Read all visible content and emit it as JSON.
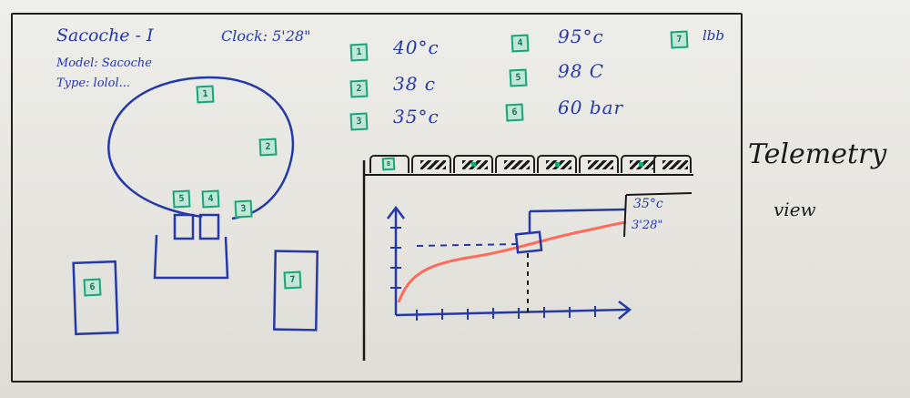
{
  "header": {
    "title": "Sacoche - I",
    "model": "Model: Sacoche",
    "type": "Type: lolol...",
    "clock": "Clock: 5'28\""
  },
  "readouts": [
    {
      "badge": "1",
      "value": "40°c"
    },
    {
      "badge": "2",
      "value": "38 c"
    },
    {
      "badge": "3",
      "value": "35°c"
    },
    {
      "badge": "4",
      "value": "95°c"
    },
    {
      "badge": "5",
      "value": "98 C"
    },
    {
      "badge": "6",
      "value": "60 bar"
    },
    {
      "badge": "7",
      "value": "lbb"
    }
  ],
  "map_badges": [
    "1",
    "2",
    "3",
    "4",
    "5",
    "6",
    "7",
    "8"
  ],
  "chart": {
    "tooltip_value": "35°c",
    "tooltip_time": "3'28\"",
    "tab_count": 9,
    "active_tab_badge": "8"
  },
  "side_note": {
    "line1": "Telemetry",
    "line2": "view"
  },
  "colors": {
    "ink_blue": "#2438a8",
    "badge_green": "#18a57a",
    "curve_red": "#ff6a5a",
    "ink_black": "#1a1a1a"
  }
}
